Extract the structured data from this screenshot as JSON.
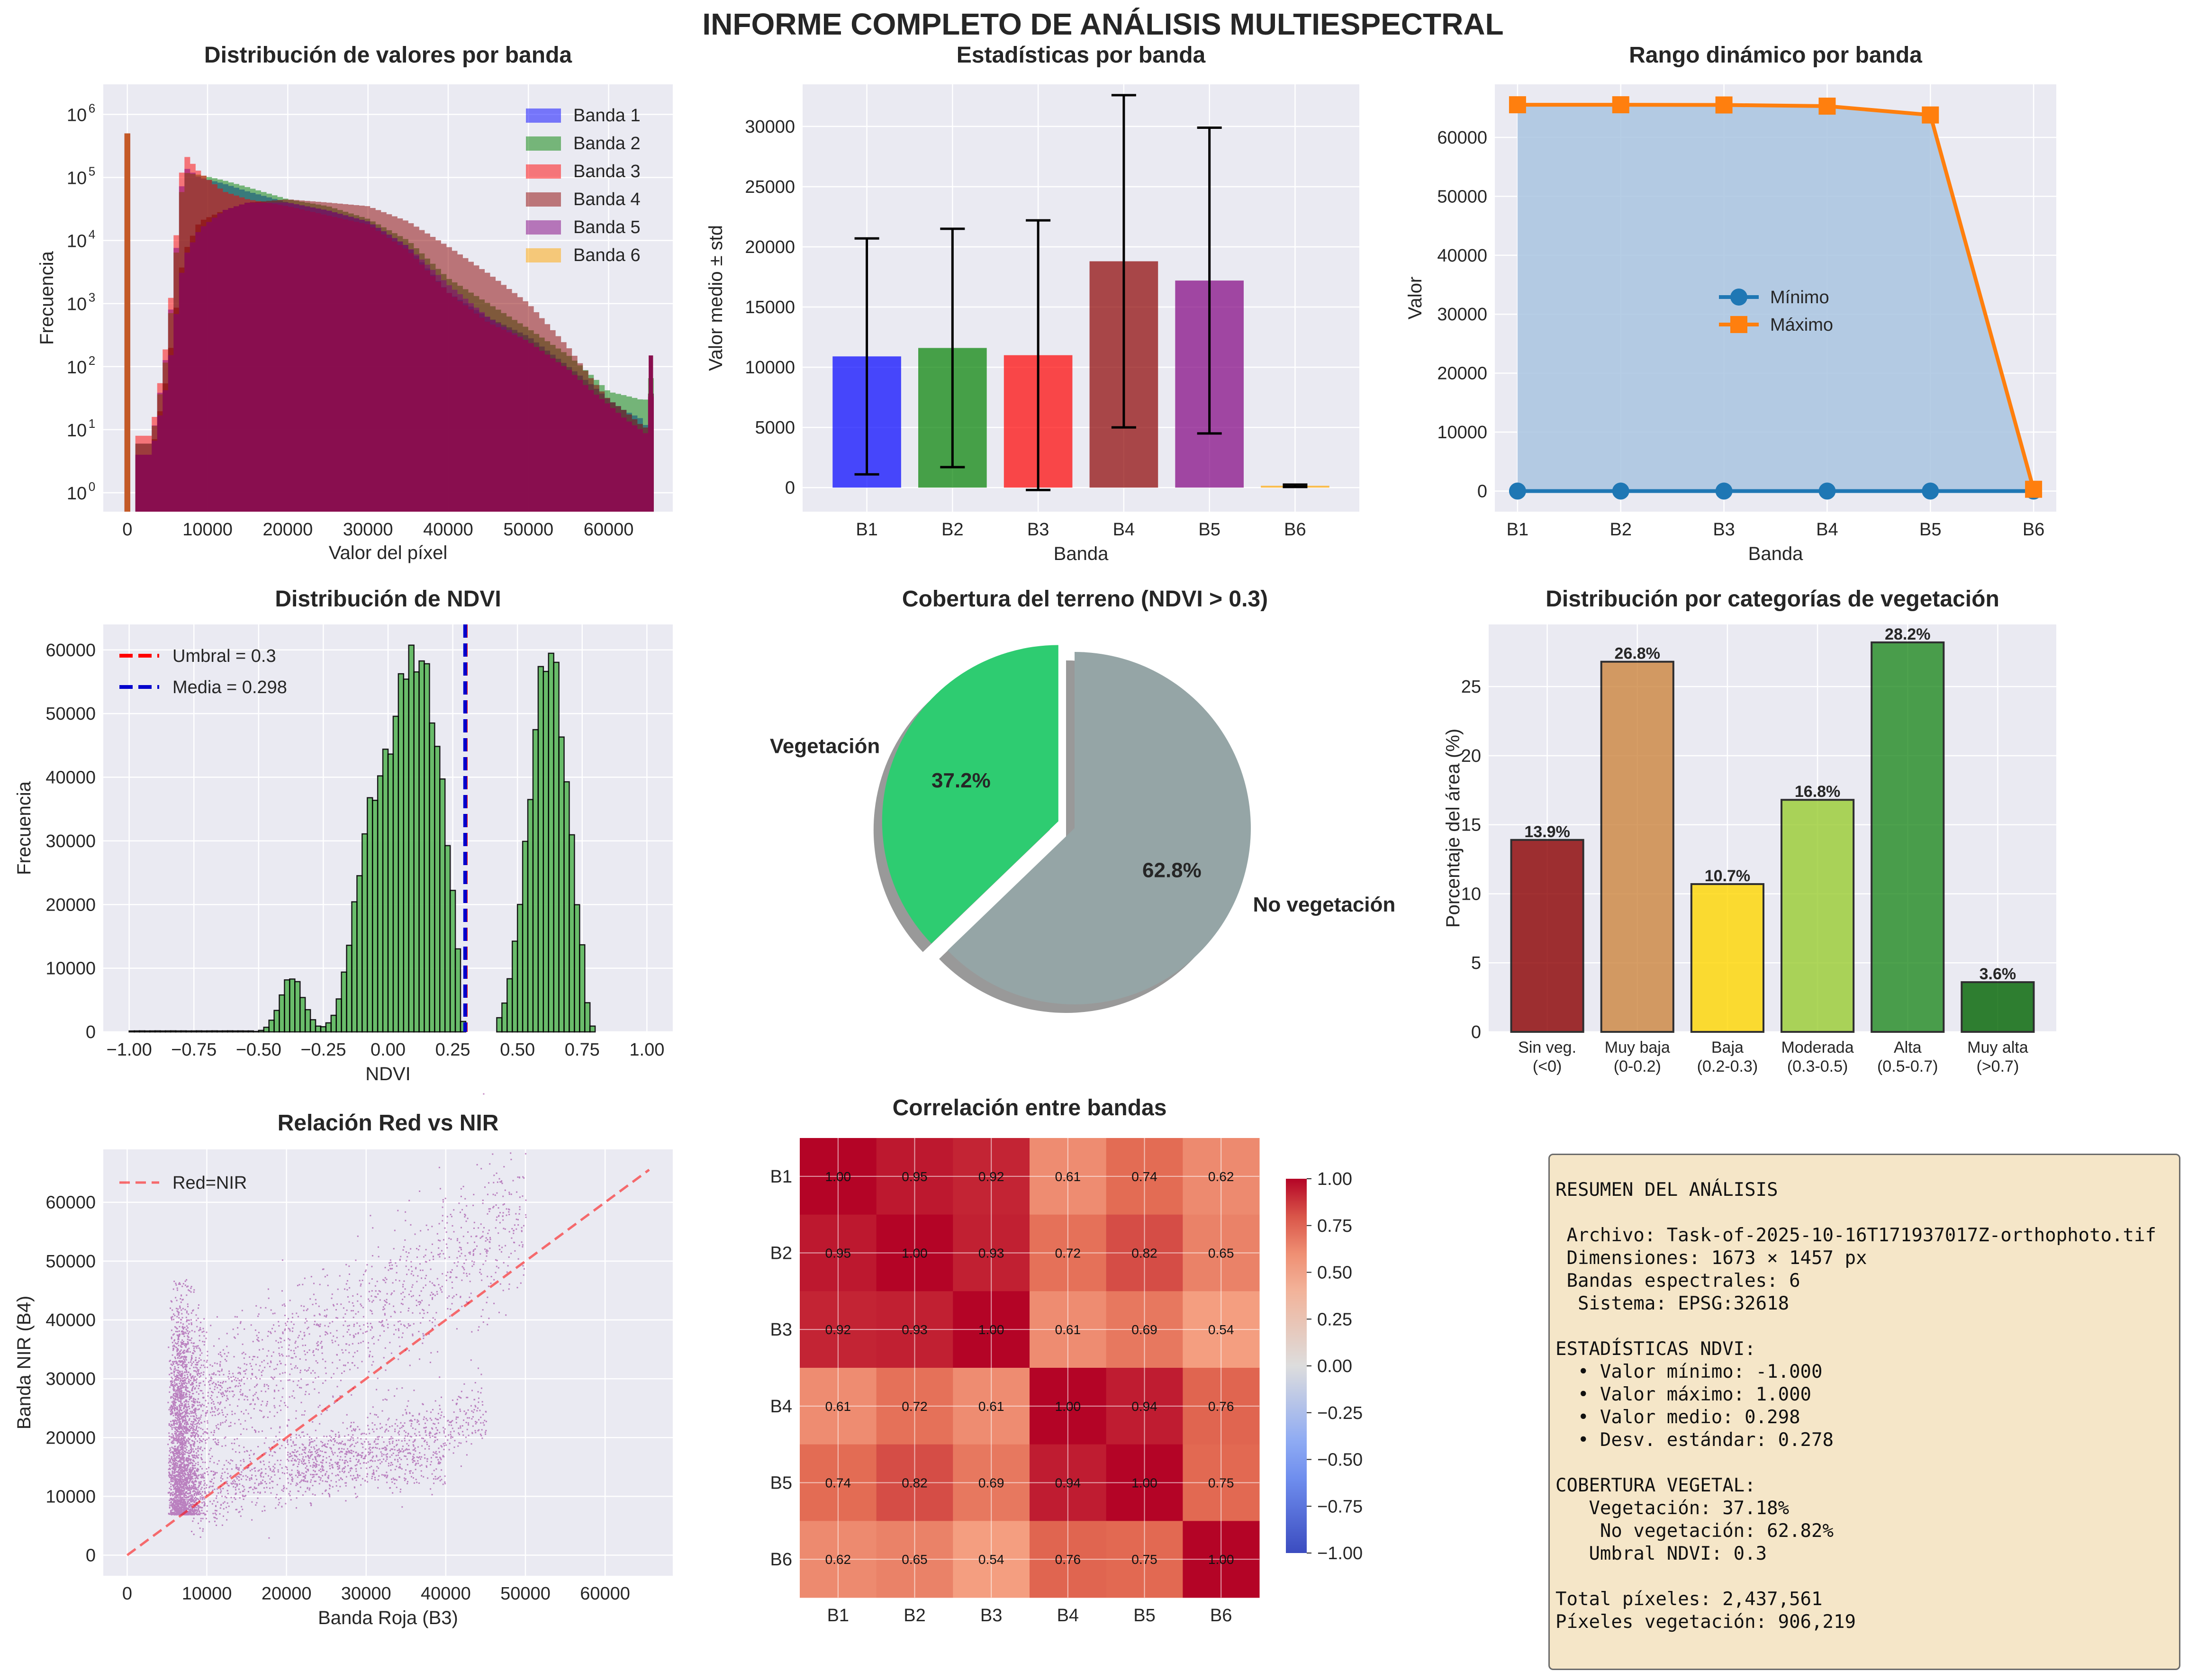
{
  "title": "INFORME COMPLETO DE ANÁLISIS MULTIESPECTRAL",
  "colors": {
    "panel_bg": "#eaeaf2",
    "grid": "#ffffff",
    "band_colors": [
      "#0000ff",
      "#008000",
      "#ff0000",
      "#8b0000",
      "#800080",
      "#ffa500"
    ],
    "min_line": "#1f77b4",
    "max_line": "#ff7f0e",
    "range_fill": "#a9c4e0",
    "ndvi_hist": "#5cb85c",
    "pie_veg": "#2ecc71",
    "pie_noveg": "#95a5a6",
    "scatter": "#800080",
    "category_colors": [
      "#8b0000",
      "#cd853f",
      "#ffd700",
      "#9acd32",
      "#228b22",
      "#006400"
    ],
    "summary_bg": "#f5e6c8"
  },
  "chart_data": [
    {
      "type": "bar",
      "chart_subtype": "histogram",
      "title": "Distribución de valores por banda",
      "xlabel": "Valor del píxel",
      "ylabel": "Frecuencia",
      "yscale": "log",
      "xlim": [
        -3000,
        68000
      ],
      "ylim": [
        0.5,
        3000000
      ],
      "x_ticks": [
        0,
        10000,
        20000,
        30000,
        40000,
        50000,
        60000
      ],
      "y_ticks": [
        1,
        10,
        100,
        1000,
        10000,
        100000,
        1000000
      ],
      "y_tick_labels": [
        "10^0",
        "10^1",
        "10^2",
        "10^3",
        "10^4",
        "10^5",
        "10^6"
      ],
      "legend_position": "top-right",
      "grid": true,
      "x": [
        0,
        3000,
        5000,
        7000,
        9000,
        12000,
        15000,
        20000,
        25000,
        30000,
        35000,
        40000,
        45000,
        50000,
        55000,
        58000,
        60000,
        62000,
        64000,
        65000,
        65535
      ],
      "series": [
        {
          "name": "Banda 1",
          "values": [
            500000,
            6,
            200,
            150000,
            100000,
            80000,
            60000,
            40000,
            30000,
            20000,
            8000,
            1500,
            600,
            300,
            100,
            50,
            30,
            20,
            15,
            10,
            150
          ]
        },
        {
          "name": "Banda 2",
          "values": [
            500000,
            6,
            180,
            120000,
            110000,
            90000,
            70000,
            45000,
            35000,
            22000,
            10000,
            2500,
            1000,
            400,
            150,
            70,
            40,
            35,
            30,
            30,
            150
          ]
        },
        {
          "name": "Banda 3",
          "values": [
            500000,
            8,
            300,
            250000,
            120000,
            60000,
            45000,
            35000,
            25000,
            18000,
            7000,
            1500,
            500,
            250,
            90,
            40,
            25,
            15,
            10,
            8,
            150
          ]
        },
        {
          "name": "Banda 4",
          "values": [
            500000,
            4,
            80,
            6000,
            20000,
            30000,
            40000,
            45000,
            40000,
            35000,
            20000,
            8000,
            3000,
            1000,
            200,
            60,
            30,
            20,
            12,
            10,
            150
          ]
        },
        {
          "name": "Banda 5",
          "values": [
            500000,
            4,
            60,
            5000,
            15000,
            30000,
            40000,
            40000,
            30000,
            20000,
            8000,
            2000,
            600,
            250,
            90,
            40,
            25,
            15,
            10,
            8,
            150
          ]
        },
        {
          "name": "Banda 6",
          "values": [
            500000,
            0,
            0,
            0,
            0,
            0,
            0,
            0,
            0,
            0,
            0,
            0,
            0,
            0,
            0,
            0,
            0,
            0,
            0,
            0,
            0
          ]
        }
      ]
    },
    {
      "type": "bar",
      "title": "Estadísticas por banda",
      "xlabel": "Banda",
      "ylabel": "Valor medio ± std",
      "categories": [
        "B1",
        "B2",
        "B3",
        "B4",
        "B5",
        "B6"
      ],
      "values": [
        10900,
        11600,
        11000,
        18800,
        17200,
        150
      ],
      "std": [
        9800,
        9900,
        11200,
        13800,
        12700,
        100
      ],
      "ylim": [
        -2000,
        33500
      ],
      "y_ticks": [
        0,
        5000,
        10000,
        15000,
        20000,
        25000,
        30000
      ],
      "grid": true
    },
    {
      "type": "line",
      "title": "Rango dinámico por banda",
      "xlabel": "Banda",
      "ylabel": "Valor",
      "categories": [
        "B1",
        "B2",
        "B3",
        "B4",
        "B5",
        "B6"
      ],
      "series": [
        {
          "name": "Mínimo",
          "values": [
            0,
            0,
            0,
            0,
            0,
            0
          ]
        },
        {
          "name": "Máximo",
          "values": [
            65535,
            65535,
            65500,
            65300,
            63800,
            300
          ]
        }
      ],
      "ylim": [
        -3500,
        69000
      ],
      "y_ticks": [
        0,
        10000,
        20000,
        30000,
        40000,
        50000,
        60000
      ],
      "legend_position": "center",
      "grid": true
    },
    {
      "type": "bar",
      "chart_subtype": "histogram",
      "title": "Distribución de NDVI",
      "xlabel": "NDVI",
      "ylabel": "Frecuencia",
      "xlim": [
        -1.1,
        1.1
      ],
      "ylim": [
        0,
        64000
      ],
      "x_ticks": [
        -1.0,
        -0.75,
        -0.5,
        -0.25,
        0.0,
        0.25,
        0.5,
        0.75,
        1.0
      ],
      "x_tick_labels": [
        "−1.00",
        "−0.75",
        "−0.50",
        "−0.25",
        "0.00",
        "0.25",
        "0.50",
        "0.75",
        "1.00"
      ],
      "y_ticks": [
        0,
        10000,
        20000,
        30000,
        40000,
        50000,
        60000
      ],
      "bin_width": 0.02,
      "bins_start": -1.0,
      "lines": [
        {
          "name": "Umbral = 0.3",
          "x": 0.3,
          "color": "#ff0000"
        },
        {
          "name": "Media = 0.298",
          "x": 0.298,
          "color": "#0000cc"
        }
      ],
      "legend_position": "top-left",
      "grid": true
    },
    {
      "type": "pie",
      "title": "Cobertura del terreno (NDVI > 0.3)",
      "labels": [
        "Vegetación",
        "No vegetación"
      ],
      "values": [
        37.2,
        62.8
      ],
      "value_labels": [
        "37.2%",
        "62.8%"
      ],
      "explode": [
        0.1,
        0
      ]
    },
    {
      "type": "bar",
      "title": "Distribución por categorías de vegetación",
      "ylabel": "Porcentaje del área (%)",
      "categories": [
        [
          "Sin veg.",
          "(<0)"
        ],
        [
          "Muy baja",
          "(0-0.2)"
        ],
        [
          "Baja",
          "(0.2-0.3)"
        ],
        [
          "Moderada",
          "(0.3-0.5)"
        ],
        [
          "Alta",
          "(0.5-0.7)"
        ],
        [
          "Muy alta",
          "(>0.7)"
        ]
      ],
      "values": [
        13.9,
        26.8,
        10.7,
        16.8,
        28.2,
        3.6
      ],
      "value_labels": [
        "13.9%",
        "26.8%",
        "10.7%",
        "16.8%",
        "28.2%",
        "3.6%"
      ],
      "ylim": [
        0,
        29.5
      ],
      "y_ticks": [
        0,
        5,
        10,
        15,
        20,
        25
      ],
      "grid": true
    },
    {
      "type": "scatter",
      "title": "Relación Red vs NIR",
      "xlabel": "Banda Roja (B3)",
      "ylabel": "Banda NIR (B4)",
      "xlim": [
        -3000,
        68500
      ],
      "ylim": [
        -3500,
        69000
      ],
      "x_ticks": [
        0,
        10000,
        20000,
        30000,
        40000,
        50000,
        60000
      ],
      "y_ticks": [
        0,
        10000,
        20000,
        30000,
        40000,
        50000,
        60000
      ],
      "reference_line": {
        "name": "Red=NIR",
        "x": [
          0,
          65535
        ],
        "y": [
          0,
          65535
        ]
      },
      "clusters": [
        {
          "x_range": [
            5000,
            9500
          ],
          "y_range": [
            6000,
            52000
          ],
          "n": 2600
        },
        {
          "x_range": [
            8000,
            50000
          ],
          "y_center_slope": 0.78,
          "y_offset": 18000,
          "spread": 6000,
          "n": 1400
        },
        {
          "x_range": [
            8000,
            45000
          ],
          "y_center_slope": 0.38,
          "y_offset": 7000,
          "spread": 3000,
          "n": 1000
        },
        {
          "x_range": [
            20000,
            40000
          ],
          "y_center_slope": 0.0,
          "y_offset": 16000,
          "spread": 2500,
          "n": 450
        }
      ],
      "legend_position": "top-left",
      "grid": true
    },
    {
      "type": "heatmap",
      "title": "Correlación entre bandas",
      "labels": [
        "B1",
        "B2",
        "B3",
        "B4",
        "B5",
        "B6"
      ],
      "matrix": [
        [
          1.0,
          0.95,
          0.92,
          0.61,
          0.74,
          0.62
        ],
        [
          0.95,
          1.0,
          0.93,
          0.72,
          0.82,
          0.65
        ],
        [
          0.92,
          0.93,
          1.0,
          0.61,
          0.69,
          0.54
        ],
        [
          0.61,
          0.72,
          0.61,
          1.0,
          0.94,
          0.76
        ],
        [
          0.74,
          0.82,
          0.69,
          0.94,
          1.0,
          0.75
        ],
        [
          0.62,
          0.65,
          0.54,
          0.76,
          0.75,
          1.0
        ]
      ],
      "colorbar_range": [
        -1.0,
        1.0
      ],
      "colorbar_ticks": [
        1.0,
        0.75,
        0.5,
        0.25,
        0.0,
        -0.25,
        -0.5,
        -0.75,
        -1.0
      ],
      "colorbar_tick_labels": [
        "1.00",
        "0.75",
        "0.50",
        "0.25",
        "0.00",
        "−0.25",
        "−0.50",
        "−0.75",
        "−1.00"
      ],
      "colormap": "coolwarm"
    }
  ],
  "summary": {
    "lines": [
      "RESUMEN DEL ANÁLISIS",
      "",
      " Archivo: Task-of-2025-10-16T171937017Z-orthophoto.tif",
      " Dimensiones: 1673 × 1457 px",
      " Bandas espectrales: 6",
      "  Sistema: EPSG:32618",
      "",
      "ESTADÍSTICAS NDVI:",
      "  • Valor mínimo: -1.000",
      "  • Valor máximo: 1.000",
      "  • Valor medio: 0.298",
      "  • Desv. estándar: 0.278",
      "",
      "COBERTURA VEGETAL:",
      "   Vegetación: 37.18%",
      "    No vegetación: 62.82%",
      "   Umbral NDVI: 0.3",
      "",
      "Total píxeles: 2,437,561",
      "Píxeles vegetación: 906,219"
    ]
  }
}
